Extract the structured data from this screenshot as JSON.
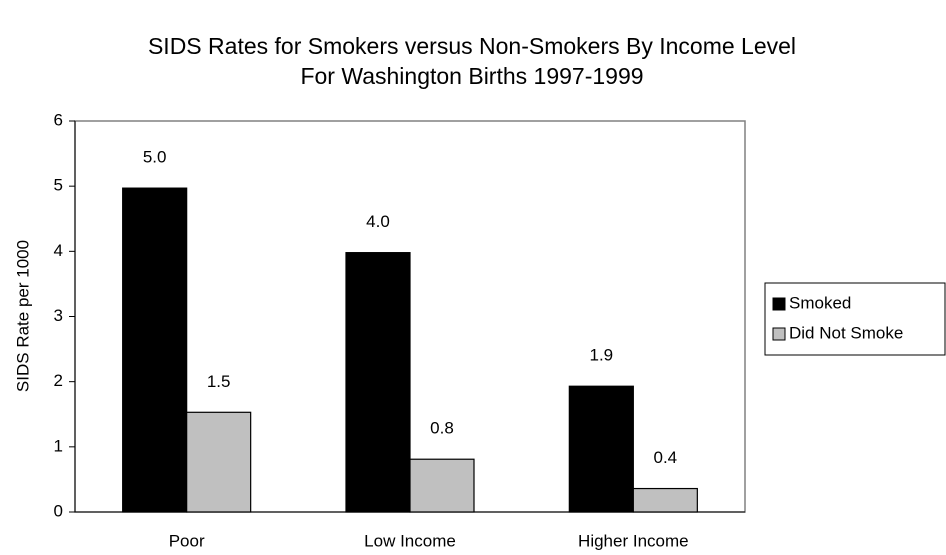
{
  "chart_data": {
    "type": "bar",
    "title": [
      "SIDS Rates for Smokers versus Non-Smokers By Income Level",
      "For Washington Births 1997-1999"
    ],
    "y_label": "SIDS Rate per 1000",
    "categories": [
      "Poor",
      "Low Income",
      "Higher Income"
    ],
    "series": [
      {
        "name": "Smoked",
        "color": "#000000",
        "values": [
          4.97,
          3.98,
          1.93
        ],
        "value_labels": [
          "5.0",
          "4.0",
          "1.9"
        ]
      },
      {
        "name": "Did Not Smoke",
        "color": "#c0c0c0",
        "values": [
          1.53,
          0.81,
          0.36
        ],
        "value_labels": [
          "1.5",
          "0.8",
          "0.4"
        ]
      }
    ],
    "ylim": [
      0,
      6
    ],
    "yticks": [
      0,
      1,
      2,
      3,
      4,
      5,
      6
    ],
    "grid": false,
    "legend": "right"
  }
}
